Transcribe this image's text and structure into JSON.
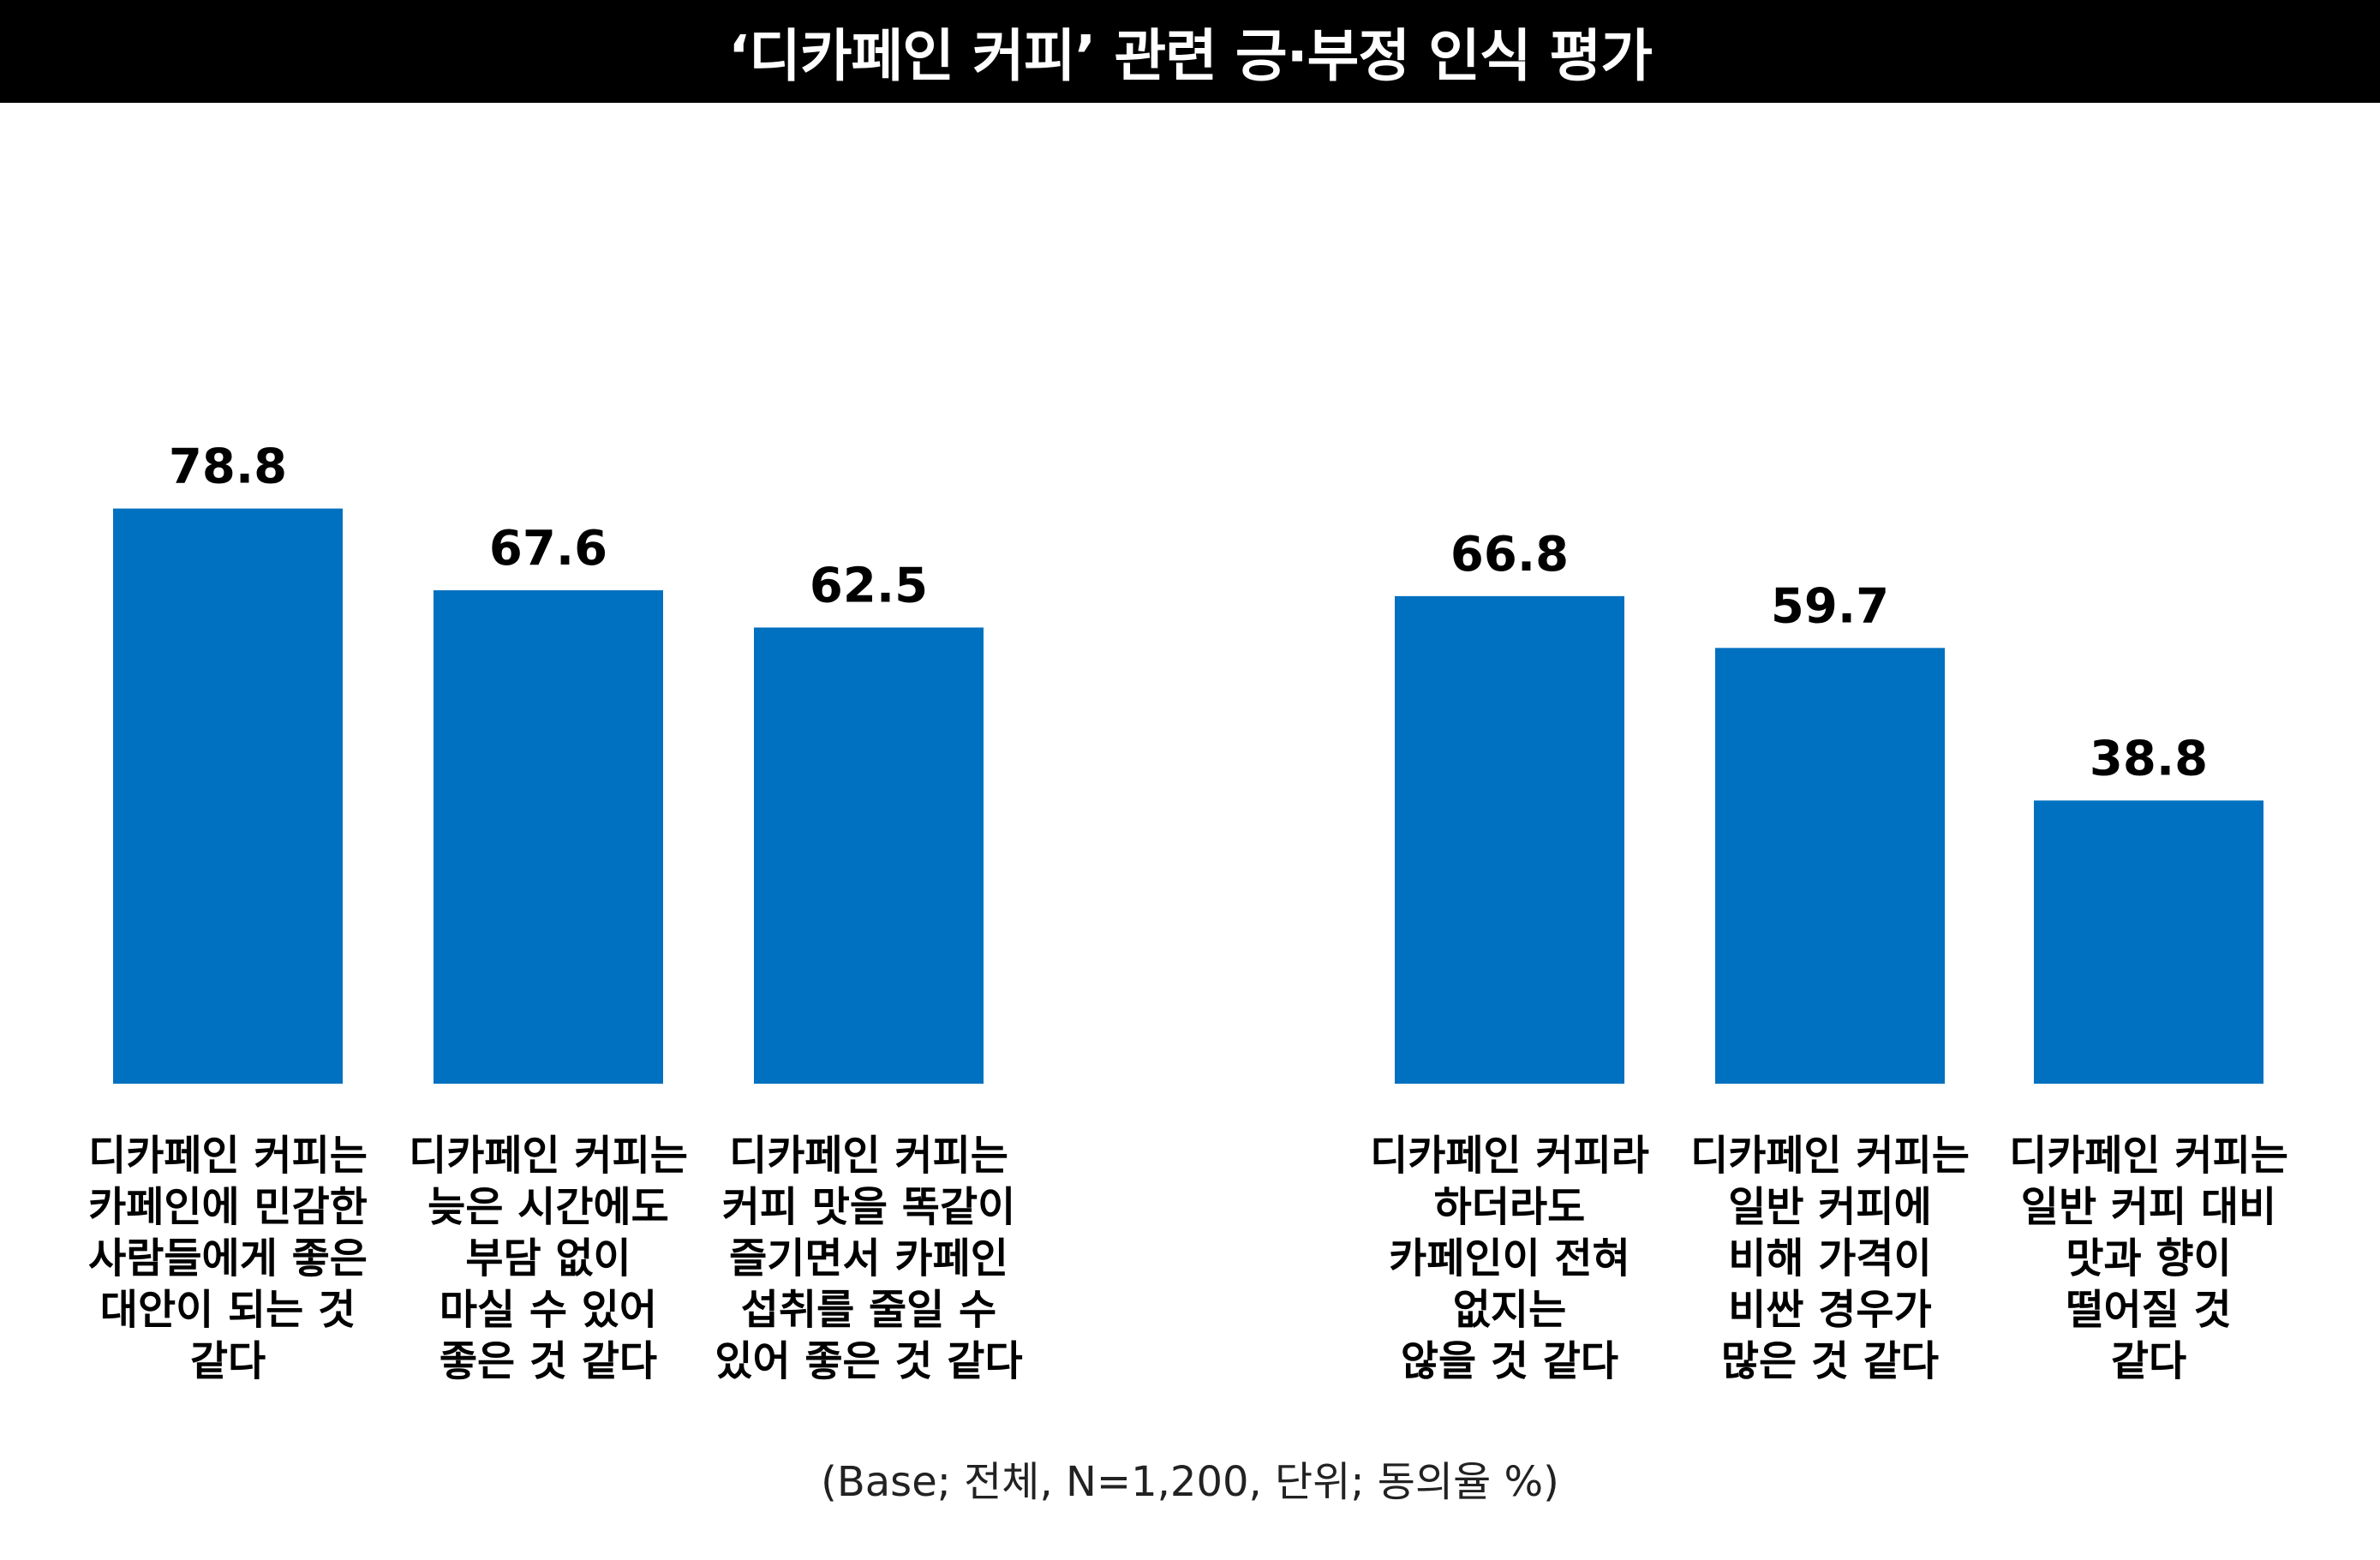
{
  "title": "‘디카페인 커피’ 관련 긍·부정 인식 평가",
  "footnote": "(Base; 전체, N=1,200, 단위; 동의율 %)",
  "colors": {
    "bar": "#0070C0",
    "title_bg": "#000000",
    "title_text": "#FFFFFF"
  },
  "chart_data": {
    "type": "bar",
    "ylim": [
      0,
      100
    ],
    "grid": false,
    "legend": "none",
    "categories": [
      [
        "디카페인 커피는",
        "카페인에 민감한",
        "사람들에게 좋은",
        "대안이 되는 것",
        "같다"
      ],
      [
        "디카페인 커피는",
        "늦은 시간에도",
        "부담 없이",
        "마실 수 있어",
        "좋은 것 같다"
      ],
      [
        "디카페인 커피는",
        "커피 맛을 똑같이",
        "즐기면서 카페인",
        "섭취를 줄일 수",
        "있어 좋은 것 같다"
      ],
      [
        "디카페인 커피라",
        "하더라도",
        "카페인이 전혀",
        "없지는",
        "않을 것 같다"
      ],
      [
        "디카페인 커피는",
        "일반 커피에",
        "비해 가격이",
        "비싼 경우가",
        "많은 것 같다"
      ],
      [
        "디카페인 커피는",
        "일반 커피 대비",
        "맛과 향이",
        "떨어질 것",
        "같다"
      ]
    ],
    "values": [
      78.8,
      67.6,
      62.5,
      66.8,
      59.7,
      38.8
    ],
    "value_labels": [
      "78.8",
      "67.6",
      "62.5",
      "66.8",
      "59.7",
      "38.8"
    ]
  }
}
